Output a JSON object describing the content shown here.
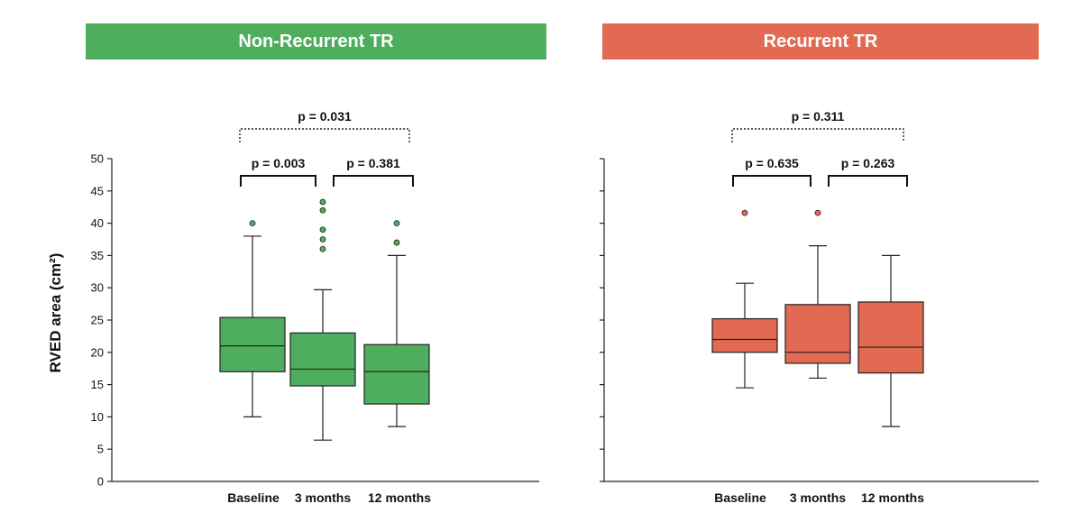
{
  "panels": [
    {
      "title": "Non-Recurrent TR",
      "color": "#4fae5e",
      "comparisons": [
        {
          "from": 0,
          "to": 2,
          "label": "p = 0.031",
          "style": "dotted"
        },
        {
          "from": 0,
          "to": 1,
          "label": "p = 0.003",
          "style": "solid"
        },
        {
          "from": 1,
          "to": 2,
          "label": "p = 0.381",
          "style": "solid"
        }
      ]
    },
    {
      "title": "Recurrent TR",
      "color": "#e36a52",
      "comparisons": [
        {
          "from": 0,
          "to": 2,
          "label": "p = 0.311",
          "style": "dotted"
        },
        {
          "from": 0,
          "to": 1,
          "label": "p = 0.635",
          "style": "solid"
        },
        {
          "from": 1,
          "to": 2,
          "label": "p = 0.263",
          "style": "solid"
        }
      ]
    }
  ],
  "chart_data": [
    {
      "type": "box",
      "title": "Non-Recurrent TR",
      "ylabel": "RVED area (cm²)",
      "ylim": [
        0,
        50
      ],
      "yticks": [
        0,
        5,
        10,
        15,
        20,
        25,
        30,
        35,
        40,
        45,
        50
      ],
      "categories": [
        "Baseline",
        "3 months",
        "12 months"
      ],
      "boxes": [
        {
          "whisker_low": 10,
          "q1": 17,
          "median": 21,
          "q3": 25.4,
          "whisker_high": 38,
          "outliers": [
            40
          ]
        },
        {
          "whisker_low": 6.4,
          "q1": 14.8,
          "median": 17.4,
          "q3": 23,
          "whisker_high": 29.7,
          "outliers": [
            36,
            37.5,
            39,
            42,
            43.3
          ]
        },
        {
          "whisker_low": 8.5,
          "q1": 12,
          "median": 17,
          "q3": 21.2,
          "whisker_high": 35,
          "outliers": [
            37,
            40
          ]
        }
      ]
    },
    {
      "type": "box",
      "title": "Recurrent TR",
      "ylim": [
        0,
        50
      ],
      "categories": [
        "Baseline",
        "3 months",
        "12 months"
      ],
      "boxes": [
        {
          "whisker_low": 14.5,
          "q1": 20,
          "median": 22,
          "q3": 25.2,
          "whisker_high": 30.7,
          "outliers": [
            41.6
          ]
        },
        {
          "whisker_low": 16,
          "q1": 18.3,
          "median": 20,
          "q3": 27.4,
          "whisker_high": 36.5,
          "outliers": [
            41.6
          ]
        },
        {
          "whisker_low": 8.5,
          "q1": 16.8,
          "median": 20.8,
          "q3": 27.8,
          "whisker_high": 35,
          "outliers": []
        }
      ]
    }
  ]
}
